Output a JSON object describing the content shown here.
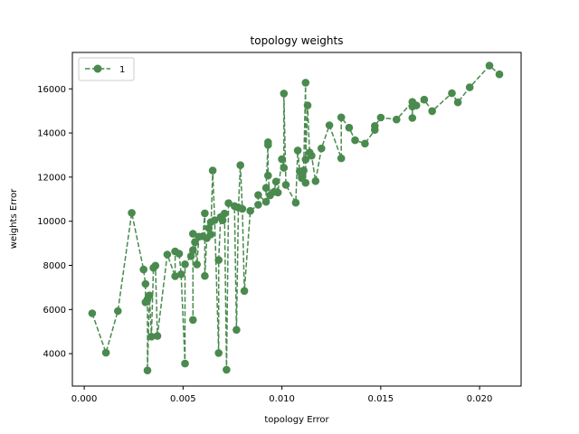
{
  "chart_data": {
    "type": "line",
    "title": "topology weights",
    "xlabel": "topology Error",
    "ylabel": "weights Error",
    "xlim": [
      -0.0006,
      0.0221
    ],
    "ylim": [
      2530,
      17650
    ],
    "xticks": [
      0.0,
      0.005,
      0.01,
      0.015,
      0.02
    ],
    "xtick_labels": [
      "0.000",
      "0.005",
      "0.010",
      "0.015",
      "0.020"
    ],
    "yticks": [
      4000,
      6000,
      8000,
      10000,
      12000,
      14000,
      16000
    ],
    "ytick_labels": [
      "4000",
      "6000",
      "8000",
      "10000",
      "12000",
      "14000",
      "16000"
    ],
    "grid": false,
    "legend_position": "top-left",
    "series": [
      {
        "name": "1",
        "color": "#4a8a4e",
        "line_style": "dashed",
        "marker": "circle",
        "points": [
          [
            0.0004,
            5830
          ],
          [
            0.0011,
            4040
          ],
          [
            0.0017,
            5930
          ],
          [
            0.0024,
            10380
          ],
          [
            0.003,
            7810
          ],
          [
            0.0031,
            7160
          ],
          [
            0.0031,
            6330
          ],
          [
            0.0032,
            6460
          ],
          [
            0.0032,
            3240
          ],
          [
            0.0033,
            6640
          ],
          [
            0.0034,
            4770
          ],
          [
            0.0035,
            7890
          ],
          [
            0.0036,
            7990
          ],
          [
            0.0037,
            4800
          ],
          [
            0.0042,
            8490
          ],
          [
            0.0046,
            7510
          ],
          [
            0.0046,
            8630
          ],
          [
            0.0048,
            8530
          ],
          [
            0.0049,
            7600
          ],
          [
            0.0051,
            3550
          ],
          [
            0.0051,
            8050
          ],
          [
            0.0054,
            8420
          ],
          [
            0.0055,
            8690
          ],
          [
            0.0055,
            5530
          ],
          [
            0.0055,
            9430
          ],
          [
            0.0056,
            9050
          ],
          [
            0.0057,
            8040
          ],
          [
            0.0058,
            9300
          ],
          [
            0.006,
            9320
          ],
          [
            0.0061,
            10360
          ],
          [
            0.0061,
            7520
          ],
          [
            0.0062,
            9230
          ],
          [
            0.0063,
            9690
          ],
          [
            0.0064,
            9960
          ],
          [
            0.0064,
            9400
          ],
          [
            0.0065,
            12300
          ],
          [
            0.0066,
            10050
          ],
          [
            0.0068,
            4030
          ],
          [
            0.0068,
            8240
          ],
          [
            0.0069,
            10190
          ],
          [
            0.007,
            10040
          ],
          [
            0.0071,
            10350
          ],
          [
            0.0072,
            3270
          ],
          [
            0.0073,
            10820
          ],
          [
            0.0076,
            10690
          ],
          [
            0.0077,
            5080
          ],
          [
            0.0078,
            10620
          ],
          [
            0.0079,
            12540
          ],
          [
            0.008,
            10560
          ],
          [
            0.0081,
            6840
          ],
          [
            0.0084,
            10470
          ],
          [
            0.0088,
            10750
          ],
          [
            0.0088,
            11190
          ],
          [
            0.0092,
            10880
          ],
          [
            0.0092,
            11510
          ],
          [
            0.0093,
            13580
          ],
          [
            0.0093,
            13460
          ],
          [
            0.0093,
            12070
          ],
          [
            0.0094,
            11170
          ],
          [
            0.0096,
            11330
          ],
          [
            0.0097,
            11800
          ],
          [
            0.0098,
            11300
          ],
          [
            0.01,
            12810
          ],
          [
            0.0101,
            12420
          ],
          [
            0.0101,
            15790
          ],
          [
            0.0102,
            11650
          ],
          [
            0.0107,
            10840
          ],
          [
            0.0108,
            13210
          ],
          [
            0.0109,
            12260
          ],
          [
            0.011,
            12080
          ],
          [
            0.011,
            11960
          ],
          [
            0.0111,
            12300
          ],
          [
            0.0112,
            16280
          ],
          [
            0.0112,
            11740
          ],
          [
            0.0112,
            12800
          ],
          [
            0.0113,
            15250
          ],
          [
            0.0114,
            13120
          ],
          [
            0.0115,
            12970
          ],
          [
            0.0117,
            11820
          ],
          [
            0.012,
            13300
          ],
          [
            0.0124,
            14350
          ],
          [
            0.013,
            12850
          ],
          [
            0.013,
            14710
          ],
          [
            0.0134,
            14240
          ],
          [
            0.0137,
            13670
          ],
          [
            0.0142,
            13520
          ],
          [
            0.0147,
            14140
          ],
          [
            0.0147,
            14320
          ],
          [
            0.015,
            14700
          ],
          [
            0.0158,
            14610
          ],
          [
            0.0166,
            15410
          ],
          [
            0.0166,
            14680
          ],
          [
            0.0166,
            15200
          ],
          [
            0.0168,
            15250
          ],
          [
            0.0172,
            15510
          ],
          [
            0.0176,
            14990
          ],
          [
            0.0186,
            15800
          ],
          [
            0.0189,
            15390
          ],
          [
            0.0195,
            16070
          ],
          [
            0.0205,
            17050
          ],
          [
            0.021,
            16660
          ]
        ]
      }
    ]
  }
}
